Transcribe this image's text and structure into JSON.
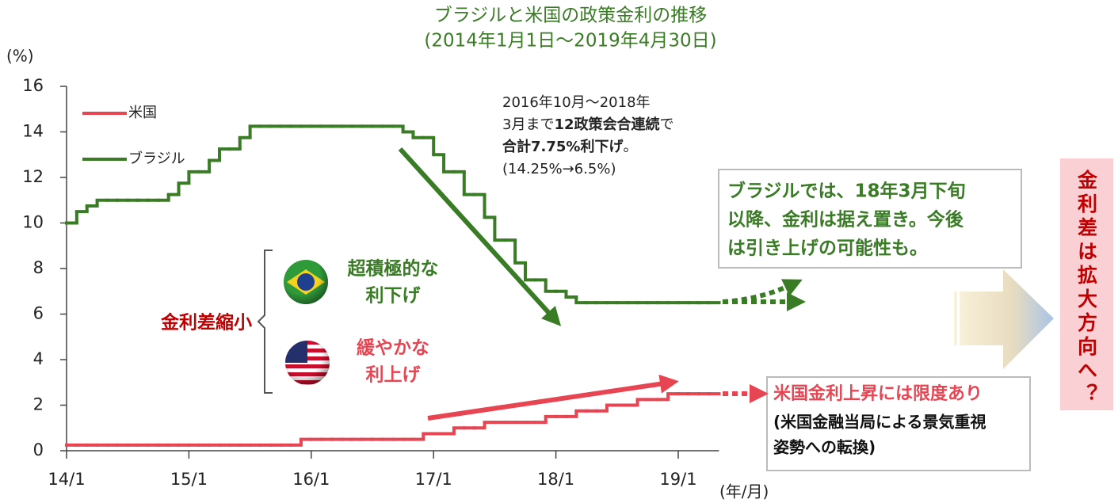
{
  "chart_data": {
    "type": "step",
    "title": "ブラジルと米国の政策金利の推移",
    "subtitle": "(2014年1月1日～2019年4月30日)",
    "y_label": "(%)",
    "x_label": "(年/月)",
    "legend": "upper left",
    "x": [
      "2014-01",
      "2014-02",
      "2014-03",
      "2014-04",
      "2014-05",
      "2014-06",
      "2014-07",
      "2014-08",
      "2014-09",
      "2014-10",
      "2014-11",
      "2014-12",
      "2015-01",
      "2015-02",
      "2015-03",
      "2015-04",
      "2015-05",
      "2015-06",
      "2015-07",
      "2015-08",
      "2015-09",
      "2015-10",
      "2015-11",
      "2015-12",
      "2016-01",
      "2016-02",
      "2016-03",
      "2016-04",
      "2016-05",
      "2016-06",
      "2016-07",
      "2016-08",
      "2016-09",
      "2016-10",
      "2016-11",
      "2016-12",
      "2017-01",
      "2017-02",
      "2017-03",
      "2017-04",
      "2017-05",
      "2017-06",
      "2017-07",
      "2017-08",
      "2017-09",
      "2017-10",
      "2017-11",
      "2017-12",
      "2018-01",
      "2018-02",
      "2018-03",
      "2018-04",
      "2018-05",
      "2018-06",
      "2018-07",
      "2018-08",
      "2018-09",
      "2018-10",
      "2018-11",
      "2018-12",
      "2019-01",
      "2019-02",
      "2019-03",
      "2019-04"
    ],
    "series": [
      {
        "name": "米国",
        "color": "#e84552",
        "values": [
          0.25,
          0.25,
          0.25,
          0.25,
          0.25,
          0.25,
          0.25,
          0.25,
          0.25,
          0.25,
          0.25,
          0.25,
          0.25,
          0.25,
          0.25,
          0.25,
          0.25,
          0.25,
          0.25,
          0.25,
          0.25,
          0.25,
          0.25,
          0.5,
          0.5,
          0.5,
          0.5,
          0.5,
          0.5,
          0.5,
          0.5,
          0.5,
          0.5,
          0.5,
          0.5,
          0.75,
          0.75,
          0.75,
          1.0,
          1.0,
          1.0,
          1.25,
          1.25,
          1.25,
          1.25,
          1.25,
          1.25,
          1.5,
          1.5,
          1.5,
          1.75,
          1.75,
          1.75,
          2.0,
          2.0,
          2.0,
          2.25,
          2.25,
          2.25,
          2.5,
          2.5,
          2.5,
          2.5,
          2.5
        ]
      },
      {
        "name": "ブラジル",
        "color": "#3a7b26",
        "values": [
          10,
          10.5,
          10.75,
          11,
          11,
          11,
          11,
          11,
          11,
          11,
          11.25,
          11.75,
          12.25,
          12.25,
          12.75,
          13.25,
          13.25,
          13.75,
          14.25,
          14.25,
          14.25,
          14.25,
          14.25,
          14.25,
          14.25,
          14.25,
          14.25,
          14.25,
          14.25,
          14.25,
          14.25,
          14.25,
          14.25,
          14.0,
          13.75,
          13.75,
          13.0,
          12.25,
          12.25,
          11.25,
          11.25,
          10.25,
          9.25,
          9.25,
          8.25,
          7.5,
          7.5,
          7.0,
          7.0,
          6.75,
          6.5,
          6.5,
          6.5,
          6.5,
          6.5,
          6.5,
          6.5,
          6.5,
          6.5,
          6.5,
          6.5,
          6.5,
          6.5,
          6.5
        ]
      }
    ],
    "xlim": [
      "2014-01",
      "2019-05"
    ],
    "xticks": [
      {
        "value": "2014-01",
        "label": "14/1"
      },
      {
        "value": "2015-01",
        "label": "15/1"
      },
      {
        "value": "2016-01",
        "label": "16/1"
      },
      {
        "value": "2017-01",
        "label": "17/1"
      },
      {
        "value": "2018-01",
        "label": "18/1"
      },
      {
        "value": "2019-01",
        "label": "19/1"
      }
    ],
    "ylim": [
      0,
      16
    ],
    "yticks": [
      0,
      2,
      4,
      6,
      8,
      10,
      12,
      14,
      16
    ],
    "annotations": {
      "cut_note": [
        [
          "2016年10月～2018年"
        ],
        [
          "3月まで",
          "12政策会合連続",
          "で"
        ],
        [
          "合計7.75%利下げ",
          "。"
        ],
        [
          "(14.25%→6.5%)"
        ]
      ],
      "brazil_box": [
        "ブラジルでは、18年3月下旬",
        "以降、金利は据え置き。今後",
        "は引き上げの可能性も。"
      ],
      "us_box": [
        "米国金利上昇には限度あり",
        "(米国金融当局による景気重視",
        "姿勢への転換)"
      ],
      "spread_narrow": "金利差縮小",
      "brazil_cut": [
        "超積極的な",
        "利下げ"
      ],
      "us_hike": [
        "緩やかな",
        "利上げ"
      ],
      "conclusion": "金利差は拡大方向へ？"
    }
  }
}
